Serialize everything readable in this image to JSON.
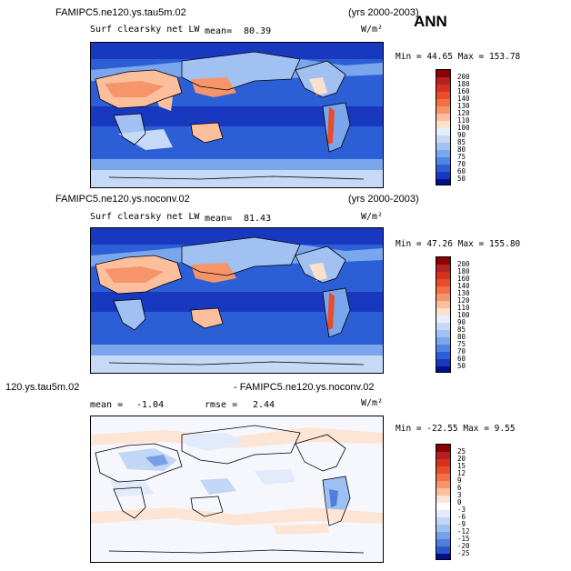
{
  "season": "ANN",
  "panels": [
    {
      "case_label": "FAMIPC5.ne120.ys.tau5m.02",
      "years": "(yrs 2000-2003)",
      "variable": "Surf clearsky net LW",
      "mean_label": "mean=",
      "mean_value": "80.39",
      "units": "W/m²",
      "minmax": "Min =  44.65 Max = 153.78",
      "colorbar_ticks": [
        "200",
        "180",
        "160",
        "140",
        "130",
        "120",
        "110",
        "100",
        "90",
        "85",
        "80",
        "75",
        "70",
        "60",
        "50"
      ]
    },
    {
      "case_label": "FAMIPC5.ne120.ys.noconv.02",
      "years": "(yrs 2000-2003)",
      "variable": "Surf clearsky net LW",
      "mean_label": "mean=",
      "mean_value": "81.43",
      "units": "W/m²",
      "minmax": "Min =  47.26 Max = 155.80",
      "colorbar_ticks": [
        "200",
        "180",
        "160",
        "140",
        "130",
        "120",
        "110",
        "100",
        "90",
        "85",
        "80",
        "75",
        "70",
        "60",
        "50"
      ]
    },
    {
      "case_label": "120.ys.tau5m.02",
      "subtract_label": "- FAMIPC5.ne120.ys.noconv.02",
      "mean_label": "mean =",
      "mean_value": "-1.04",
      "rmse_label": "rmse =",
      "rmse_value": "2.44",
      "units": "W/m²",
      "minmax": "Min = -22.55 Max =   9.55",
      "colorbar_ticks": [
        "25",
        "20",
        "15",
        "12",
        "9",
        "6",
        "3",
        "0",
        "-3",
        "-6",
        "-9",
        "-12",
        "-15",
        "-20",
        "-25"
      ]
    }
  ],
  "colors": {
    "field_scale": [
      "#8b0000",
      "#b22222",
      "#d6301e",
      "#e84c2a",
      "#f27045",
      "#f7956a",
      "#fbbf9e",
      "#fde0cc",
      "#e6eefc",
      "#c6d9f7",
      "#a0c1f2",
      "#79a6ec",
      "#4f86e2",
      "#2c5fd6",
      "#1838c0",
      "#00108a"
    ],
    "diff_scale": [
      "#8b0000",
      "#b22222",
      "#d6301e",
      "#e84c2a",
      "#f27045",
      "#f7956a",
      "#fbbf9e",
      "#fde5d6",
      "#ffffff",
      "#e2ebfb",
      "#c2d6f6",
      "#9ebff1",
      "#779fe8",
      "#4f7ede",
      "#2a56cc",
      "#00108a"
    ]
  }
}
